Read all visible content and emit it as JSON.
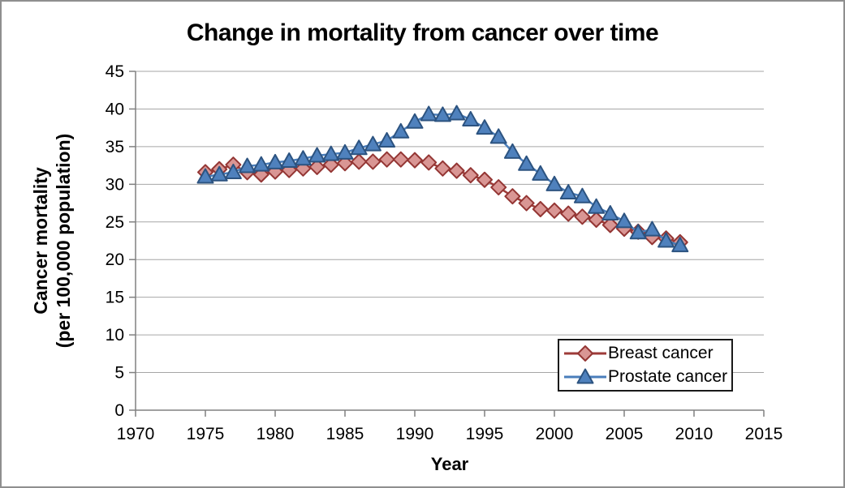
{
  "title": "Change in mortality from cancer over time",
  "chart_data": {
    "type": "line",
    "title": "Change in mortality from cancer over time",
    "xlabel": "Year",
    "ylabel_line1": "Cancer mortality",
    "ylabel_line2": "(per 100,000 population)",
    "xlim": [
      1970,
      2015
    ],
    "ylim": [
      0,
      45
    ],
    "x_ticks": [
      1970,
      1975,
      1980,
      1985,
      1990,
      1995,
      2000,
      2005,
      2010,
      2015
    ],
    "y_ticks": [
      0,
      5,
      10,
      15,
      20,
      25,
      30,
      35,
      40,
      45
    ],
    "grid": true,
    "gridline_color": "#a6a6a6",
    "axis_color": "#808080",
    "legend_position": "inside-bottom-right",
    "x": [
      1975,
      1976,
      1977,
      1978,
      1979,
      1980,
      1981,
      1982,
      1983,
      1984,
      1985,
      1986,
      1987,
      1988,
      1989,
      1990,
      1991,
      1992,
      1993,
      1994,
      1995,
      1996,
      1997,
      1998,
      1999,
      2000,
      2001,
      2002,
      2003,
      2004,
      2005,
      2006,
      2007,
      2008,
      2009
    ],
    "series": [
      {
        "name": "Breast cancer",
        "marker": "diamond",
        "line_color": "#9e3b38",
        "marker_fill": "#d99694",
        "marker_stroke": "#943634",
        "values": [
          31.6,
          32.0,
          32.6,
          31.6,
          31.3,
          31.7,
          31.9,
          32.1,
          32.3,
          32.6,
          32.8,
          33.0,
          33.0,
          33.3,
          33.3,
          33.2,
          32.9,
          32.1,
          31.8,
          31.2,
          30.6,
          29.6,
          28.4,
          27.5,
          26.7,
          26.5,
          26.1,
          25.7,
          25.3,
          24.6,
          24.1,
          23.7,
          23.0,
          22.8,
          22.3
        ]
      },
      {
        "name": "Prostate cancer",
        "marker": "triangle",
        "line_color": "#4a7ebb",
        "marker_fill": "#4f81bd",
        "marker_stroke": "#2c5380",
        "values": [
          31.0,
          31.3,
          31.6,
          32.4,
          32.6,
          32.9,
          33.1,
          33.4,
          33.8,
          34.0,
          34.2,
          34.8,
          35.3,
          35.8,
          37.0,
          38.3,
          39.3,
          39.2,
          39.4,
          38.6,
          37.5,
          36.3,
          34.3,
          32.7,
          31.4,
          30.0,
          28.9,
          28.4,
          27.0,
          26.1,
          25.1,
          23.6,
          24.0,
          22.5,
          21.9
        ]
      }
    ]
  },
  "legend": {
    "items": [
      {
        "label": "Breast cancer"
      },
      {
        "label": "Prostate cancer"
      }
    ]
  }
}
